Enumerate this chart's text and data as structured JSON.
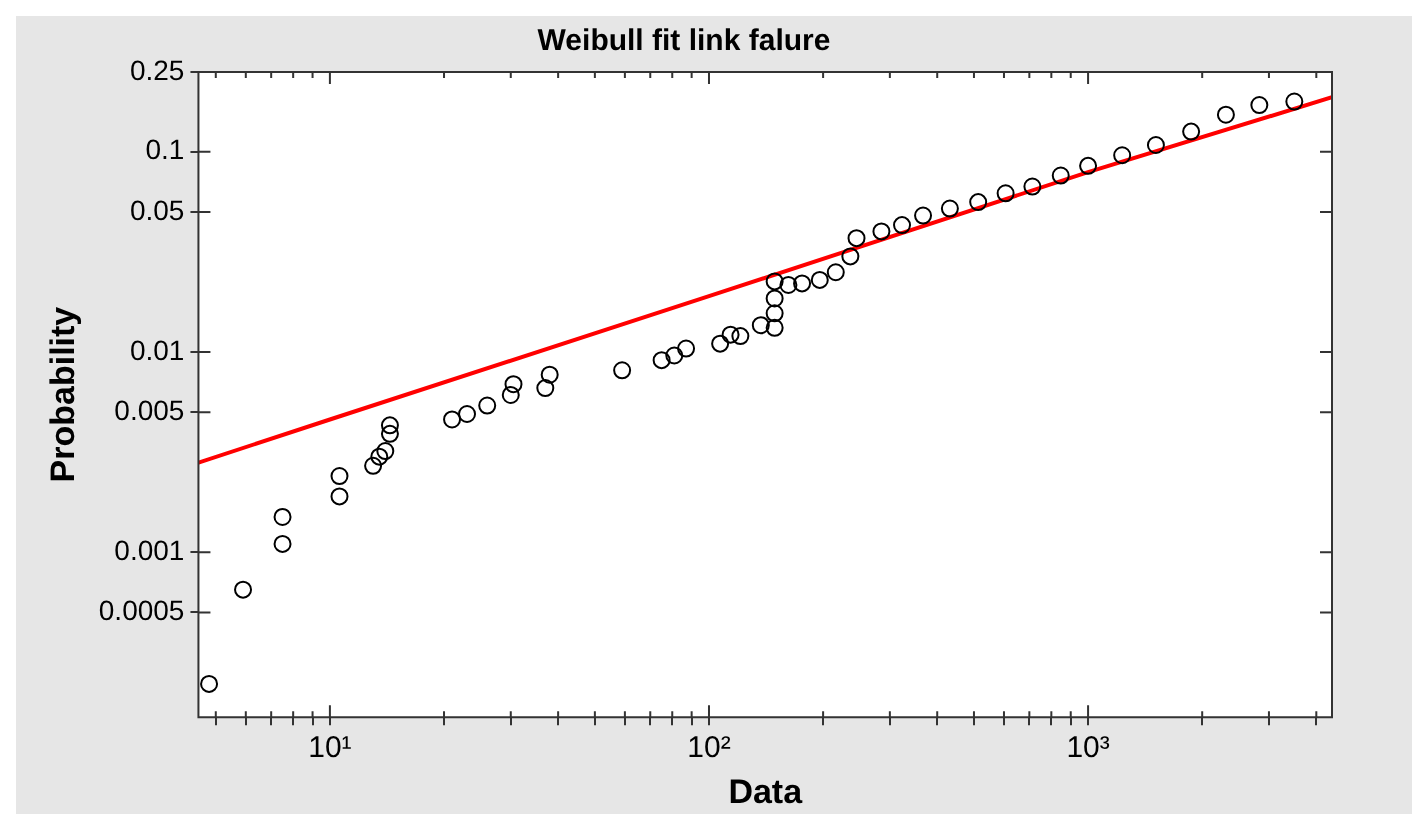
{
  "chart_data": {
    "type": "scatter",
    "title": "Weibull fit link falure",
    "xlabel": "Data",
    "ylabel": "Probability",
    "log": "xy",
    "grid": false,
    "legend": false,
    "marker": "circle",
    "xlim": [
      4.5,
      4400
    ],
    "ylim": [
      0.00015,
      0.25
    ],
    "xticks": [
      {
        "value": 5,
        "label": null
      },
      {
        "value": 6,
        "label": null
      },
      {
        "value": 7,
        "label": null
      },
      {
        "value": 8,
        "label": null
      },
      {
        "value": 9,
        "label": null
      },
      {
        "value": 10,
        "label": "10¹"
      },
      {
        "value": 20,
        "label": null
      },
      {
        "value": 30,
        "label": null
      },
      {
        "value": 40,
        "label": null
      },
      {
        "value": 50,
        "label": null
      },
      {
        "value": 60,
        "label": null
      },
      {
        "value": 70,
        "label": null
      },
      {
        "value": 80,
        "label": null
      },
      {
        "value": 90,
        "label": null
      },
      {
        "value": 100,
        "label": "10²"
      },
      {
        "value": 200,
        "label": null
      },
      {
        "value": 300,
        "label": null
      },
      {
        "value": 400,
        "label": null
      },
      {
        "value": 500,
        "label": null
      },
      {
        "value": 600,
        "label": null
      },
      {
        "value": 700,
        "label": null
      },
      {
        "value": 800,
        "label": null
      },
      {
        "value": 900,
        "label": null
      },
      {
        "value": 1000,
        "label": "10³"
      },
      {
        "value": 2000,
        "label": null
      },
      {
        "value": 3000,
        "label": null
      },
      {
        "value": 4000,
        "label": null
      }
    ],
    "yticks": [
      0.0005,
      0.001,
      0.005,
      0.01,
      0.05,
      0.1,
      0.25
    ],
    "series": [
      {
        "type": "scatter",
        "color": "#000000",
        "x": [
          4.8,
          5.9,
          7.5,
          7.5,
          10.6,
          10.6,
          13,
          13.5,
          14,
          14.4,
          14.4,
          21,
          23,
          26,
          30,
          30.5,
          37,
          38,
          59,
          75,
          81,
          87,
          107,
          114,
          121,
          137,
          149,
          149,
          149,
          149,
          162,
          176,
          196,
          216,
          236,
          245,
          285,
          323,
          367,
          432,
          513,
          606,
          713,
          847,
          1000,
          1230,
          1510,
          1870,
          2310,
          2830,
          3500
        ],
        "values": [
          0.00022,
          0.00065,
          0.0015,
          0.0011,
          0.0024,
          0.0019,
          0.0027,
          0.003,
          0.0032,
          0.0039,
          0.0043,
          0.0046,
          0.0049,
          0.0054,
          0.0061,
          0.0069,
          0.0066,
          0.0077,
          0.0081,
          0.0091,
          0.0096,
          0.0104,
          0.011,
          0.0122,
          0.012,
          0.0136,
          0.0132,
          0.0156,
          0.0185,
          0.0225,
          0.0216,
          0.022,
          0.0229,
          0.025,
          0.03,
          0.037,
          0.04,
          0.043,
          0.048,
          0.052,
          0.056,
          0.062,
          0.067,
          0.076,
          0.085,
          0.096,
          0.108,
          0.126,
          0.153,
          0.171,
          0.178
        ]
      },
      {
        "type": "line",
        "color": "#ff0000",
        "marker": "none",
        "x": [
          4.5,
          10,
          100,
          1000,
          4400
        ],
        "values": [
          0.0028,
          0.0046,
          0.019,
          0.079,
          0.187
        ]
      }
    ]
  }
}
